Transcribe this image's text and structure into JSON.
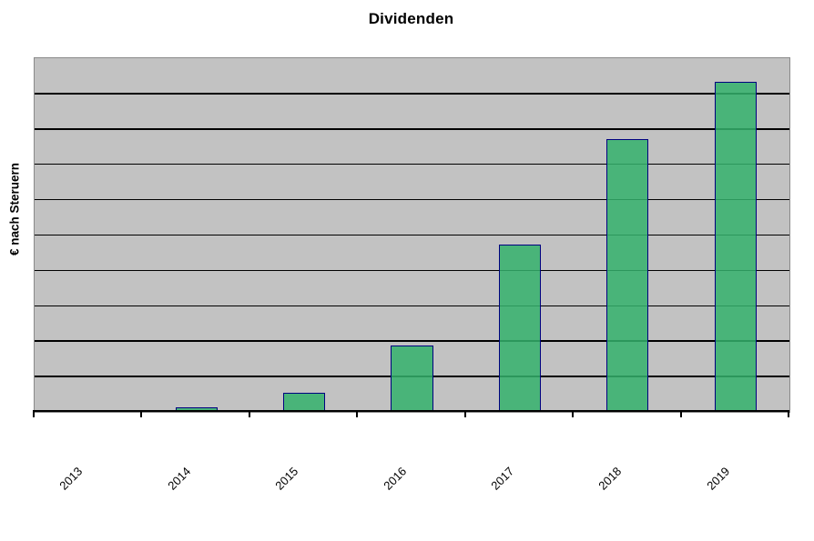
{
  "chart_data": {
    "type": "bar",
    "title": "Dividenden",
    "xlabel": "",
    "ylabel": "€ nach Steruern",
    "categories": [
      "2013",
      "2014",
      "2015",
      "2016",
      "2017",
      "2018",
      "2019"
    ],
    "values": [
      0,
      0.12,
      0.53,
      1.87,
      4.74,
      7.7,
      9.32
    ],
    "values_note": "relative units; gridline spacing = 1; no numeric y-axis tick labels are visible in the chart",
    "ylim": [
      0,
      10
    ],
    "gridline_step": 1,
    "grid": "horizontal black gridlines on gray plot background",
    "y_tick_labels": "none",
    "x_tick_label_rotation_deg": -45,
    "legend": "none"
  },
  "colors": {
    "page_background": "#ffffff",
    "plot_background": "#c2c2c2",
    "plot_border": "#8a8a8a",
    "gridline": "#000000",
    "axis": "#000000",
    "bar_fill": "#34b16c",
    "bar_fill_opacity": 0.85,
    "bar_border": "#000080",
    "text": "#000000"
  }
}
